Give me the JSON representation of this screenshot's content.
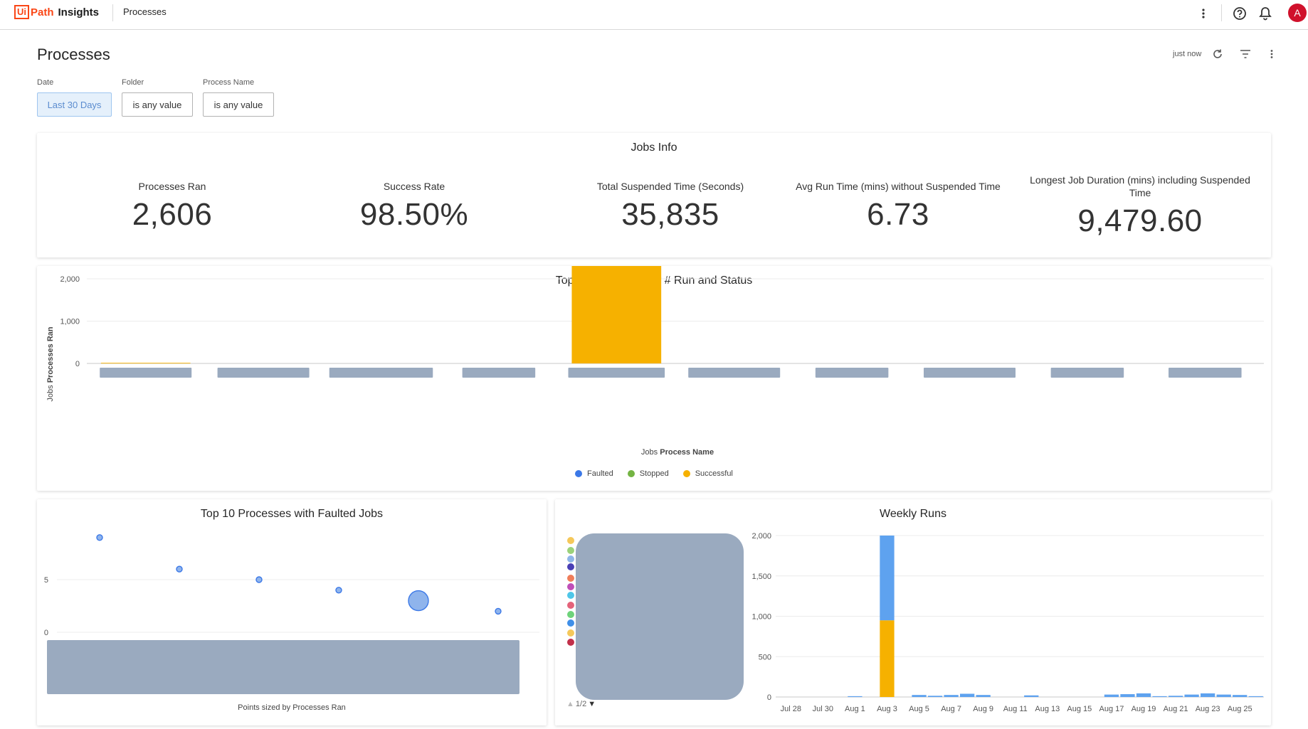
{
  "topbar": {
    "logo_box": "Ui",
    "logo_path": "Path",
    "logo_product": "Insights",
    "breadcrumb": "Processes",
    "avatar_letter": "A",
    "icons": [
      "more-vertical-icon",
      "help-icon",
      "bell-icon"
    ]
  },
  "header": {
    "title": "Processes",
    "refresh_time": "just now",
    "icons": [
      "refresh-icon",
      "filter-icon",
      "more-vertical-icon"
    ]
  },
  "filters": [
    {
      "label": "Date",
      "value": "Last 30 Days",
      "active": true
    },
    {
      "label": "Folder",
      "value": "is any value",
      "active": false
    },
    {
      "label": "Process Name",
      "value": "is any value",
      "active": false
    }
  ],
  "jobs_info": {
    "title": "Jobs Info",
    "kpis": [
      {
        "label": "Processes Ran",
        "value": "2,606"
      },
      {
        "label": "Success Rate",
        "value": "98.50%"
      },
      {
        "label": "Total Suspended Time (Seconds)",
        "value": "35,835"
      },
      {
        "label": "Avg Run Time (mins) without Suspended Time",
        "value": "6.73"
      },
      {
        "label": "Longest Job Duration (mins) including Suspended Time",
        "value": "9,479.60"
      }
    ]
  },
  "top10": {
    "title": "Top 10 Processes by # Run and Status",
    "ylabel_prefix": "Jobs",
    "ylabel": "Processes Ran",
    "xlabel_prefix": "Jobs",
    "xlabel": "Process Name",
    "legend": [
      {
        "name": "Faulted",
        "color": "#3b78e7"
      },
      {
        "name": "Stopped",
        "color": "#74b443"
      },
      {
        "name": "Successful",
        "color": "#f6b100"
      }
    ]
  },
  "faulted": {
    "title": "Top 10 Processes with Faulted Jobs",
    "footer": "Points sized by Processes Ran"
  },
  "weekly": {
    "title": "Weekly Runs",
    "pager": "1/2",
    "legend_colors": [
      "#f5c85a",
      "#9bd27a",
      "#8fb6e8",
      "#4a3fb5",
      "#ef7d5a",
      "#c04fb8",
      "#4fc6e8",
      "#e4637a",
      "#6ed37a",
      "#3f8fe8",
      "#f5c85a",
      "#c2304a"
    ]
  },
  "chart_data": [
    {
      "type": "bar",
      "title": "Top 10 Processes by # Run and Status",
      "xlabel": "Jobs Process Name",
      "ylabel": "Jobs Processes Ran",
      "categories": [
        "",
        "",
        "",
        "",
        "",
        "",
        "",
        "",
        "",
        ""
      ],
      "series": [
        {
          "name": "Faulted",
          "values": [
            0,
            0,
            0,
            0,
            0,
            0,
            0,
            0,
            0,
            0
          ]
        },
        {
          "name": "Stopped",
          "values": [
            0,
            0,
            0,
            0,
            0,
            0,
            0,
            0,
            0,
            0
          ]
        },
        {
          "name": "Successful",
          "values": [
            15,
            0,
            0,
            0,
            2500,
            0,
            0,
            0,
            0,
            0
          ]
        }
      ],
      "yticks": [
        0,
        1000,
        2000
      ],
      "ylim": [
        0,
        2500
      ],
      "grid": true,
      "legend": "bottom-center"
    },
    {
      "type": "scatter",
      "title": "Top 10 Processes with Faulted Jobs",
      "points": [
        {
          "x": 1,
          "y": 9,
          "size": 1
        },
        {
          "x": 2,
          "y": 6,
          "size": 1
        },
        {
          "x": 3,
          "y": 5,
          "size": 1
        },
        {
          "x": 4,
          "y": 4,
          "size": 1
        },
        {
          "x": 5,
          "y": 3,
          "size": 5
        },
        {
          "x": 6,
          "y": 2,
          "size": 1
        }
      ],
      "yticks": [
        0,
        5
      ],
      "ylim": [
        0,
        10
      ],
      "grid": true
    },
    {
      "type": "bar",
      "title": "Weekly Runs",
      "categories": [
        "Jul 28",
        "Jul 29",
        "Jul 30",
        "Jul 31",
        "Aug 1",
        "Aug 2",
        "Aug 3",
        "Aug 4",
        "Aug 5",
        "Aug 6",
        "Aug 7",
        "Aug 8",
        "Aug 9",
        "Aug 10",
        "Aug 11",
        "Aug 12",
        "Aug 13",
        "Aug 14",
        "Aug 15",
        "Aug 16",
        "Aug 17",
        "Aug 18",
        "Aug 19",
        "Aug 20",
        "Aug 21",
        "Aug 22",
        "Aug 23",
        "Aug 24",
        "Aug 25",
        "Aug 26"
      ],
      "tick_labels": [
        "Jul 28",
        "Jul 30",
        "Aug 1",
        "Aug 3",
        "Aug 5",
        "Aug 7",
        "Aug 9",
        "Aug 11",
        "Aug 13",
        "Aug 15",
        "Aug 17",
        "Aug 19",
        "Aug 21",
        "Aug 23",
        "Aug 25"
      ],
      "series": [
        {
          "color": "#f6b100",
          "values": [
            0,
            0,
            0,
            0,
            0,
            0,
            950,
            0,
            0,
            0,
            0,
            0,
            0,
            0,
            0,
            0,
            0,
            0,
            0,
            0,
            0,
            0,
            0,
            0,
            0,
            0,
            0,
            0,
            0,
            0
          ]
        },
        {
          "color": "#5ea2ef",
          "values": [
            0,
            0,
            0,
            0,
            10,
            0,
            1050,
            0,
            25,
            15,
            25,
            40,
            25,
            0,
            0,
            20,
            0,
            0,
            0,
            0,
            30,
            35,
            45,
            10,
            15,
            30,
            45,
            30,
            25,
            10
          ]
        }
      ],
      "yticks": [
        0,
        500,
        1000,
        1500,
        2000
      ],
      "ylim": [
        0,
        2000
      ],
      "grid": true
    }
  ]
}
